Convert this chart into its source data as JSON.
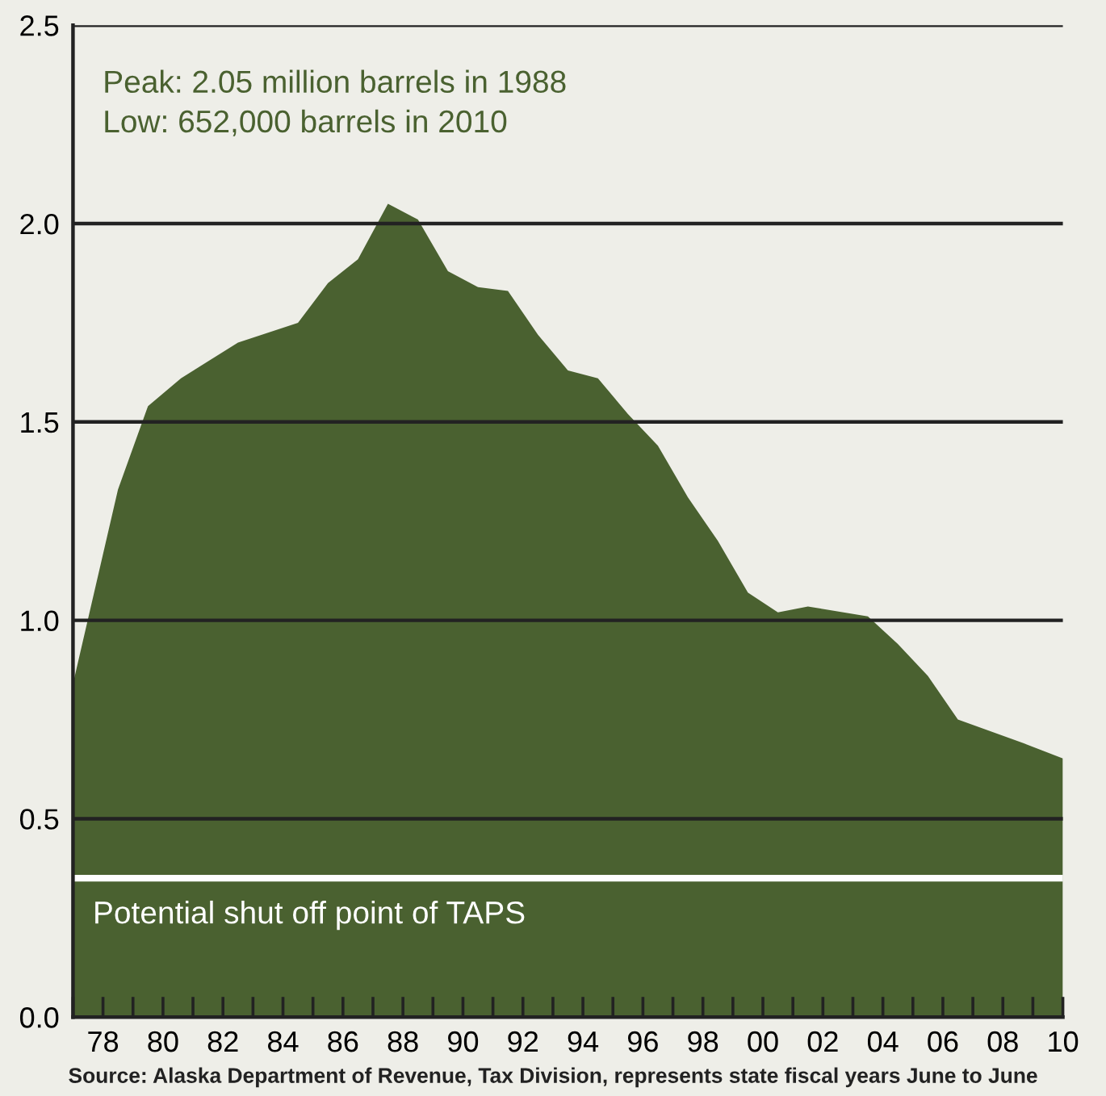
{
  "chart_data": {
    "type": "area",
    "x": [
      1977,
      1978.5,
      1979.5,
      1980.6,
      1982.5,
      1984.5,
      1985.5,
      1986.5,
      1987.5,
      1988.5,
      1989.5,
      1990.5,
      1991.5,
      1992.5,
      1993.5,
      1994.5,
      1995.5,
      1996.5,
      1997.5,
      1998.5,
      1999.5,
      2000.5,
      2001.5,
      2003.5,
      2004.5,
      2005.5,
      2006.5,
      2008.7,
      2010
    ],
    "series": [
      {
        "color": "#4a6130",
        "values": [
          0.84,
          1.33,
          1.54,
          1.61,
          1.7,
          1.75,
          1.85,
          1.91,
          2.05,
          2.01,
          1.88,
          1.84,
          1.83,
          1.72,
          1.63,
          1.61,
          1.52,
          1.44,
          1.31,
          1.2,
          1.07,
          1.02,
          1.035,
          1.01,
          0.94,
          0.86,
          0.75,
          0.69,
          0.652
        ]
      }
    ],
    "xlim": [
      1977,
      2010
    ],
    "xticks": [
      {
        "value": 1977,
        "label": null
      },
      {
        "value": 1978,
        "label": "78"
      },
      {
        "value": 1979,
        "label": null
      },
      {
        "value": 1980,
        "label": "80"
      },
      {
        "value": 1981,
        "label": null
      },
      {
        "value": 1982,
        "label": "82"
      },
      {
        "value": 1983,
        "label": null
      },
      {
        "value": 1984,
        "label": "84"
      },
      {
        "value": 1985,
        "label": null
      },
      {
        "value": 1986,
        "label": "86"
      },
      {
        "value": 1987,
        "label": null
      },
      {
        "value": 1988,
        "label": "88"
      },
      {
        "value": 1989,
        "label": null
      },
      {
        "value": 1990,
        "label": "90"
      },
      {
        "value": 1991,
        "label": null
      },
      {
        "value": 1992,
        "label": "92"
      },
      {
        "value": 1993,
        "label": null
      },
      {
        "value": 1994,
        "label": "94"
      },
      {
        "value": 1995,
        "label": null
      },
      {
        "value": 1996,
        "label": "96"
      },
      {
        "value": 1997,
        "label": null
      },
      {
        "value": 1998,
        "label": "98"
      },
      {
        "value": 1999,
        "label": null
      },
      {
        "value": 2000,
        "label": "00"
      },
      {
        "value": 2001,
        "label": null
      },
      {
        "value": 2002,
        "label": "02"
      },
      {
        "value": 2003,
        "label": null
      },
      {
        "value": 2004,
        "label": "04"
      },
      {
        "value": 2005,
        "label": null
      },
      {
        "value": 2006,
        "label": "06"
      },
      {
        "value": 2007,
        "label": null
      },
      {
        "value": 2008,
        "label": "08"
      },
      {
        "value": 2009,
        "label": null
      },
      {
        "value": 2010,
        "label": "10"
      }
    ],
    "ylim": [
      0,
      2.5
    ],
    "yticks": [
      {
        "value": 0,
        "label": "0.0"
      },
      {
        "value": 0.5,
        "label": "0.5"
      },
      {
        "value": 1.0,
        "label": "1.0"
      },
      {
        "value": 1.5,
        "label": "1.5"
      },
      {
        "value": 2.0,
        "label": "2.0"
      },
      {
        "value": 2.5,
        "label": "2.5"
      }
    ],
    "grid": "y",
    "ref_lines": [
      {
        "axis": "y",
        "value": 0.35,
        "label": "Potential shut off point of TAPS",
        "color": "#ffffff"
      }
    ],
    "annotations": [
      "Peak: 2.05 million barrels in 1988",
      "Low: 652,000 barrels in 2010",
      "Source: Alaska Department of Revenue, Tax Division, represents state fiscal years June to June"
    ]
  }
}
